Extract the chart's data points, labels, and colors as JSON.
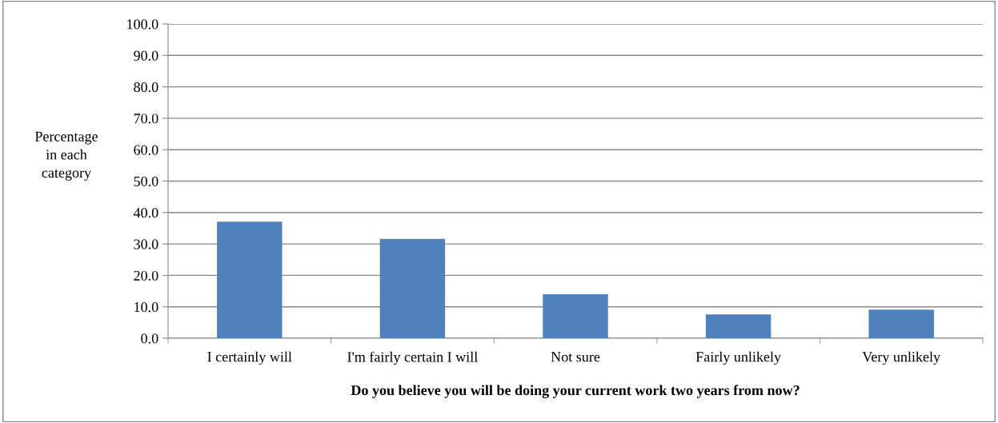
{
  "chart_data": {
    "type": "bar",
    "xlabel": "Do you believe you will be doing your current work two years from now?",
    "ylabel": "Percentage\nin each\ncategory",
    "categories": [
      "I certainly will",
      "I'm fairly certain I will",
      "Not sure",
      "Fairly unlikely",
      "Very unlikely"
    ],
    "values": [
      37.1,
      31.6,
      14.0,
      7.6,
      9.1
    ],
    "color": "#4f81bd",
    "ylim": [
      0,
      100
    ],
    "yticks": [
      {
        "value": 0,
        "label": "0.0"
      },
      {
        "value": 10,
        "label": "10.0"
      },
      {
        "value": 20,
        "label": "20.0"
      },
      {
        "value": 30,
        "label": "30.0"
      },
      {
        "value": 40,
        "label": "40.0"
      },
      {
        "value": 50,
        "label": "50.0"
      },
      {
        "value": 60,
        "label": "60.0"
      },
      {
        "value": 70,
        "label": "70.0"
      },
      {
        "value": 80,
        "label": "80.0"
      },
      {
        "value": 90,
        "label": "90.0"
      },
      {
        "value": 100,
        "label": "100.0"
      }
    ],
    "grid": "y",
    "legend": false
  }
}
